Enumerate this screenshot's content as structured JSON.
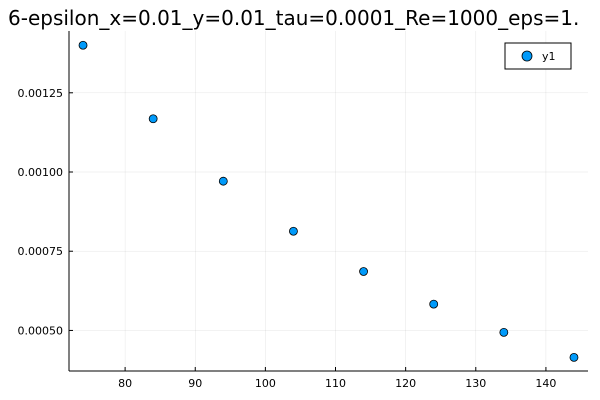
{
  "chart_data": {
    "type": "scatter",
    "title": "6-epsilon_x=0.01_y=0.01_tau=0.0001_Re=1000_eps=1.",
    "xlabel": "",
    "ylabel": "",
    "xlim": [
      72,
      146
    ],
    "ylim": [
      0.000372,
      0.001445
    ],
    "x_ticks": [
      80,
      90,
      100,
      110,
      120,
      130,
      140
    ],
    "x_tick_labels": [
      "80",
      "90",
      "100",
      "110",
      "120",
      "130",
      "140"
    ],
    "y_ticks": [
      0.0005,
      0.00075,
      0.001,
      0.00125
    ],
    "y_tick_labels": [
      "0.00050",
      "0.00075",
      "0.00100",
      "0.00125"
    ],
    "grid": true,
    "legend_position": "top-right",
    "series": [
      {
        "name": "y1",
        "color": "#009AFA",
        "x": [
          74,
          84,
          94,
          104,
          114,
          124,
          134,
          144
        ],
        "y": [
          0.0014,
          0.001168,
          0.000971,
          0.000813,
          0.000686,
          0.000583,
          0.000494,
          0.000415
        ]
      }
    ]
  }
}
